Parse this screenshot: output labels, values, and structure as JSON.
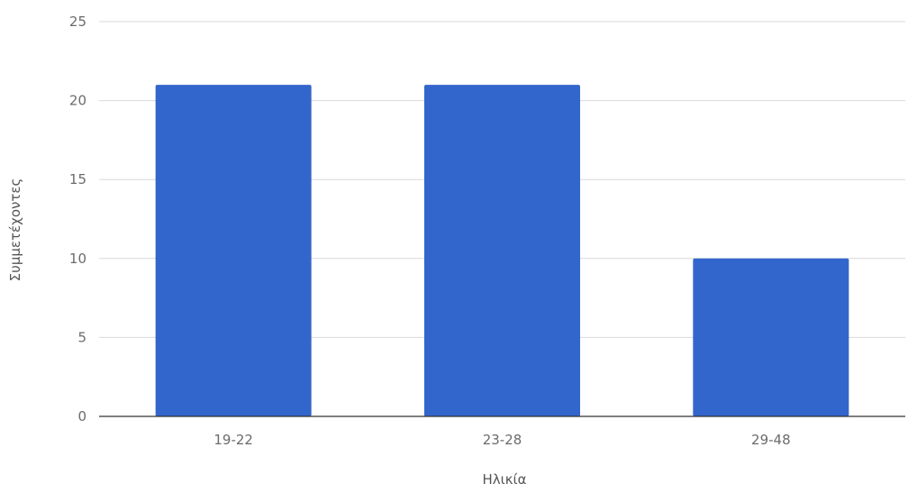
{
  "chart_data": {
    "type": "bar",
    "title": "",
    "xlabel": "Ηλικία",
    "ylabel": "Συμμετέχοντες",
    "categories": [
      "19-22",
      "23-28",
      "29-48"
    ],
    "series": [
      {
        "values": [
          21,
          21,
          10
        ]
      }
    ],
    "ylim": [
      0,
      25
    ],
    "yticks": [
      "0",
      "5",
      "10",
      "15",
      "20",
      "25"
    ],
    "grid": true,
    "legend": "none",
    "colors": {
      "bar": "#3366cc",
      "grid": "#d9d9d9",
      "baseline": "#333333"
    }
  }
}
